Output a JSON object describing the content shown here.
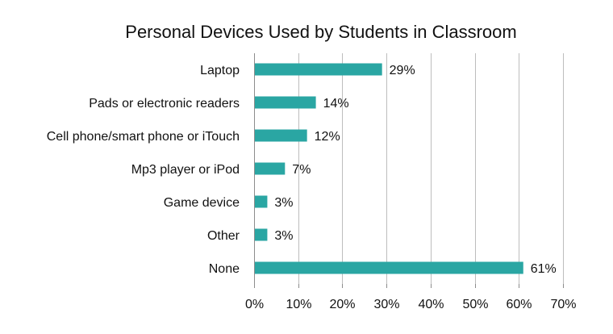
{
  "chart_data": {
    "type": "bar",
    "orientation": "horizontal",
    "title": "Personal Devices Used by Students in Classroom",
    "xlabel": "",
    "ylabel": "",
    "categories": [
      "Laptop",
      "Pads or electronic readers",
      "Cell phone/smart phone or iTouch",
      "Mp3 player or iPod",
      "Game device",
      "Other",
      "None"
    ],
    "values": [
      29,
      14,
      12,
      7,
      3,
      3,
      61
    ],
    "value_labels": [
      "29%",
      "14%",
      "12%",
      "7%",
      "3%",
      "3%",
      "61%"
    ],
    "xlim": [
      0,
      70
    ],
    "ticks": [
      0,
      10,
      20,
      30,
      40,
      50,
      60,
      70
    ],
    "tick_labels": [
      "0%",
      "10%",
      "20%",
      "30%",
      "40%",
      "50%",
      "60%",
      "70%"
    ],
    "grid": true,
    "legend": "none",
    "colors": {
      "bar": "#2aa6a3",
      "grid": "#bdbdbd",
      "axis": "#8c8c8c",
      "text": "#111111"
    }
  }
}
